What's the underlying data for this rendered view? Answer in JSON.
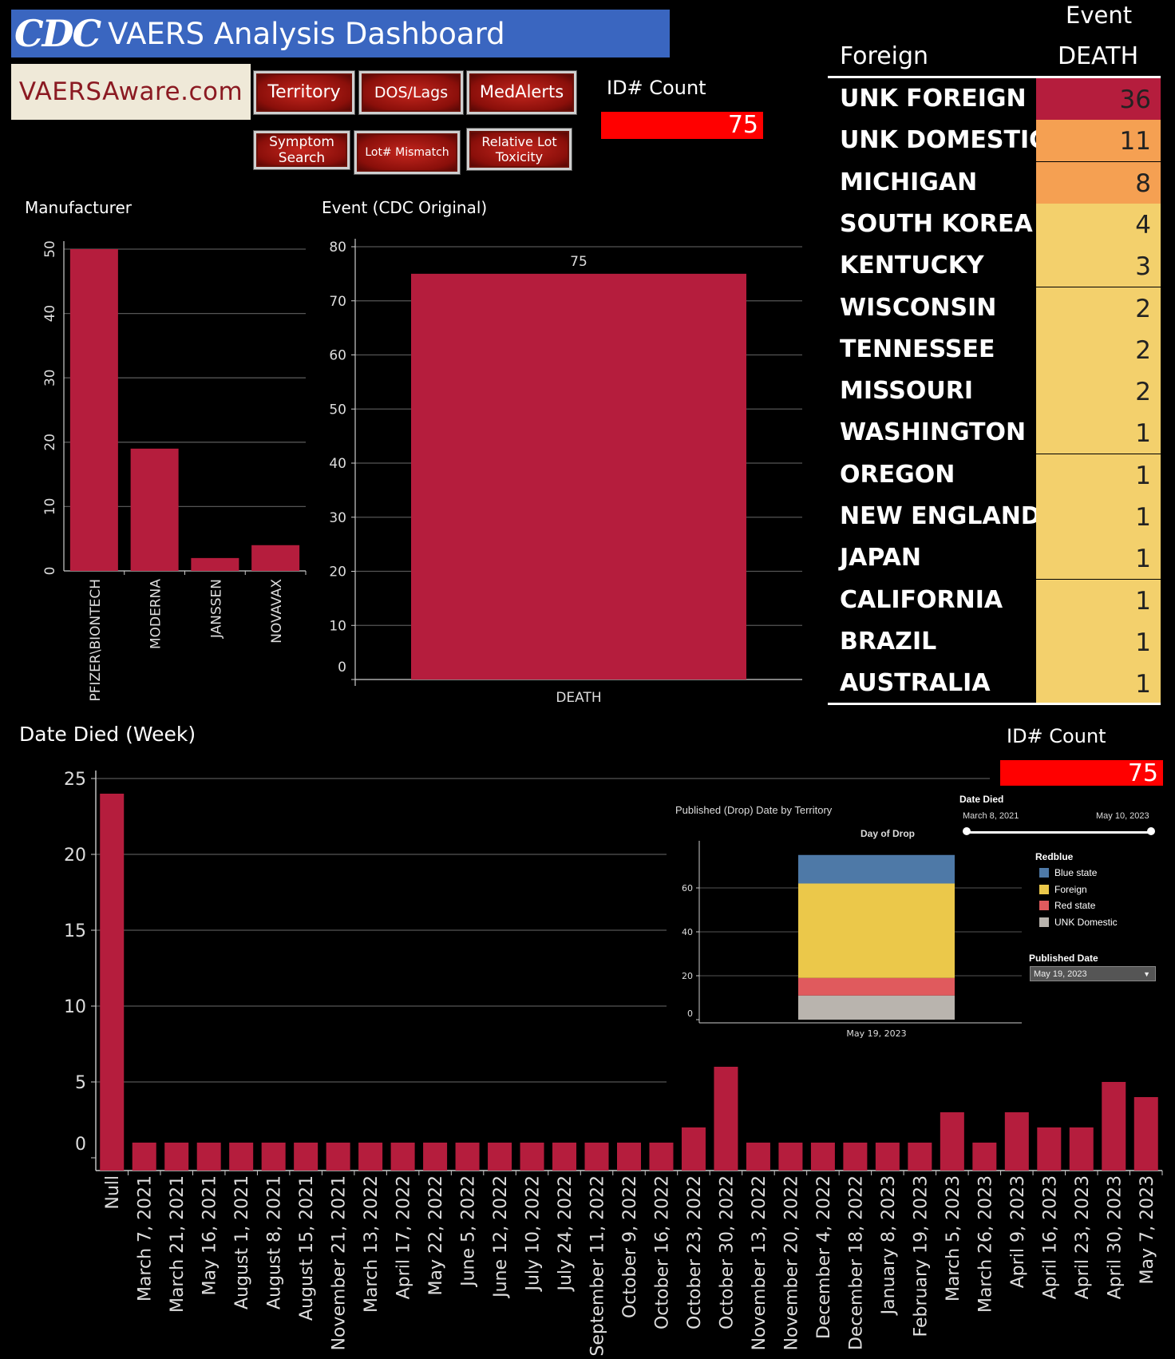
{
  "header": {
    "logo": "CDC",
    "title": "VAERS Analysis Dashboard",
    "site": "VAERSAware.com"
  },
  "nav": {
    "territory": "Territory",
    "dos_lags": "DOS/Lags",
    "medalerts": "MedAlerts",
    "symptom_search": "Symptom Search",
    "lot_mismatch": "Lot# Mismatch",
    "relative_lot_toxicity": "Relative Lot Toxicity"
  },
  "kpi_top": {
    "label": "ID# Count",
    "value": "75"
  },
  "kpi_bottom": {
    "label": "ID# Count",
    "value": "75"
  },
  "foreign_table": {
    "row_header": "Foreign",
    "col_header_top": "Event",
    "col_header": "DEATH",
    "rows": [
      {
        "name": "UNK FOREIGN",
        "value": "36",
        "color": "#b51d3d"
      },
      {
        "name": "UNK DOMESTIC",
        "value": "11",
        "color": "#f5a052"
      },
      {
        "name": "MICHIGAN",
        "value": "8",
        "color": "#f5a052"
      },
      {
        "name": "SOUTH KOREA",
        "value": "4",
        "color": "#f3d06c"
      },
      {
        "name": "KENTUCKY",
        "value": "3",
        "color": "#f3d06c"
      },
      {
        "name": "WISCONSIN",
        "value": "2",
        "color": "#f3d06c"
      },
      {
        "name": "TENNESSEE",
        "value": "2",
        "color": "#f3d06c"
      },
      {
        "name": "MISSOURI",
        "value": "2",
        "color": "#f3d06c"
      },
      {
        "name": "WASHINGTON",
        "value": "1",
        "color": "#f3d06c"
      },
      {
        "name": "OREGON",
        "value": "1",
        "color": "#f3d06c"
      },
      {
        "name": "NEW ENGLAND",
        "value": "1",
        "color": "#f3d06c"
      },
      {
        "name": "JAPAN",
        "value": "1",
        "color": "#f3d06c"
      },
      {
        "name": "CALIFORNIA",
        "value": "1",
        "color": "#f3d06c"
      },
      {
        "name": "BRAZIL",
        "value": "1",
        "color": "#f3d06c"
      },
      {
        "name": "AUSTRALIA",
        "value": "1",
        "color": "#f3d06c"
      }
    ]
  },
  "chart_data": [
    {
      "id": "manufacturer",
      "type": "bar",
      "title": "Manufacturer",
      "categories": [
        "PFIZER\\BIONTECH",
        "MODERNA",
        "JANSSEN",
        "NOVAVAX"
      ],
      "values": [
        50,
        19,
        2,
        4
      ],
      "yticks": [
        "0",
        "10",
        "20",
        "30",
        "40",
        "50"
      ],
      "ylim": [
        0,
        50
      ],
      "color": "#b51d3d",
      "grid": true
    },
    {
      "id": "event",
      "type": "bar",
      "title": "Event (CDC Original)",
      "categories": [
        "DEATH"
      ],
      "values": [
        75
      ],
      "data_labels": [
        "75"
      ],
      "yticks": [
        "0",
        "10",
        "20",
        "30",
        "40",
        "50",
        "60",
        "70",
        "80"
      ],
      "ylim": [
        0,
        80
      ],
      "color": "#b51d3d",
      "grid": true
    },
    {
      "id": "date_died",
      "type": "bar",
      "title": "Date Died (Week)",
      "categories": [
        "Null",
        "March 7, 2021",
        "March 21, 2021",
        "May 16, 2021",
        "August 1, 2021",
        "August 8, 2021",
        "August 15, 2021",
        "November 21, 2021",
        "March 13, 2022",
        "April 17, 2022",
        "May 22, 2022",
        "June 5, 2022",
        "June 12, 2022",
        "July 10, 2022",
        "July 24, 2022",
        "September 11, 2022",
        "October 9, 2022",
        "October 16, 2022",
        "October 23, 2022",
        "October 30, 2022",
        "November 13, 2022",
        "November 20, 2022",
        "December 4, 2022",
        "December 18, 2022",
        "January 8, 2023",
        "February 19, 2023",
        "March 5, 2023",
        "March 26, 2023",
        "April 9, 2023",
        "April 16, 2023",
        "April 23, 2023",
        "April 30, 2023",
        "May 7, 2023"
      ],
      "values": [
        24,
        1,
        1,
        1,
        1,
        1,
        1,
        1,
        1,
        1,
        1,
        1,
        1,
        1,
        1,
        1,
        1,
        1,
        2,
        6,
        1,
        1,
        1,
        1,
        1,
        1,
        3,
        1,
        3,
        2,
        2,
        5,
        4
      ],
      "yticks": [
        "0",
        "5",
        "10",
        "15",
        "20",
        "25"
      ],
      "ylim": [
        0,
        25
      ],
      "color": "#b51d3d",
      "grid": true
    },
    {
      "id": "published_drop",
      "type": "bar",
      "stacked": true,
      "title": "Published (Drop) Date by Territory",
      "subtitle": "Day of Drop",
      "categories": [
        "May 19, 2023"
      ],
      "series": [
        {
          "name": "UNK Domestic",
          "values": [
            11
          ],
          "color": "#b9b4ae"
        },
        {
          "name": "Red state",
          "values": [
            8
          ],
          "color": "#e05a5d"
        },
        {
          "name": "Foreign",
          "values": [
            43
          ],
          "color": "#ebc84a"
        },
        {
          "name": "Blue state",
          "values": [
            13
          ],
          "color": "#4e79a7"
        }
      ],
      "yticks": [
        "0",
        "20",
        "40",
        "60"
      ],
      "ylim": [
        0,
        80
      ],
      "grid": true
    }
  ],
  "inset_controls": {
    "date_died_label": "Date Died",
    "date_start": "March 8, 2021",
    "date_end": "May 10, 2023",
    "legend_title": "Redblue",
    "legend": [
      {
        "name": "Blue state",
        "color": "#4e79a7"
      },
      {
        "name": "Foreign",
        "color": "#ebc84a"
      },
      {
        "name": "Red state",
        "color": "#e05a5d"
      },
      {
        "name": "UNK Domestic",
        "color": "#b9b4ae"
      }
    ],
    "published_date_label": "Published Date",
    "published_date_value": "May 19, 2023"
  }
}
